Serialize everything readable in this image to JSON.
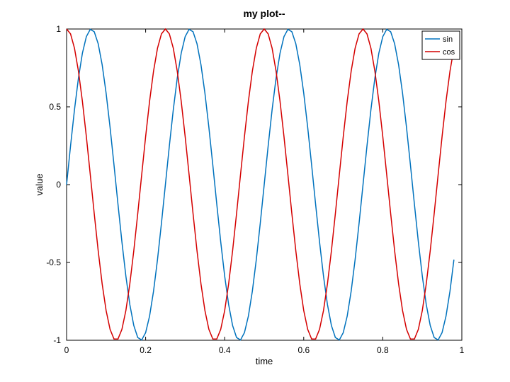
{
  "chart_data": {
    "type": "line",
    "title": "my plot--",
    "xlabel": "time",
    "ylabel": "value",
    "xlim": [
      0,
      1
    ],
    "ylim": [
      -1,
      1
    ],
    "xticks": [
      0,
      0.2,
      0.4,
      0.6,
      0.8,
      1
    ],
    "xtick_labels": [
      "0",
      "0.2",
      "0.4",
      "0.6",
      "0.8",
      "1"
    ],
    "yticks": [
      -1,
      -0.5,
      0,
      0.5,
      1
    ],
    "ytick_labels": [
      "-1",
      "-0.5",
      "0",
      "0.5",
      "1"
    ],
    "grid": false,
    "legend_position": "top-right",
    "sampling": {
      "x_start": 0,
      "x_end": 0.98,
      "x_step": 0.01
    },
    "series": [
      {
        "name": "sin",
        "color": "#0072bd",
        "function": "sin",
        "frequency": 4
      },
      {
        "name": "cos",
        "color": "#d40000",
        "function": "cos",
        "frequency": 4
      }
    ]
  }
}
